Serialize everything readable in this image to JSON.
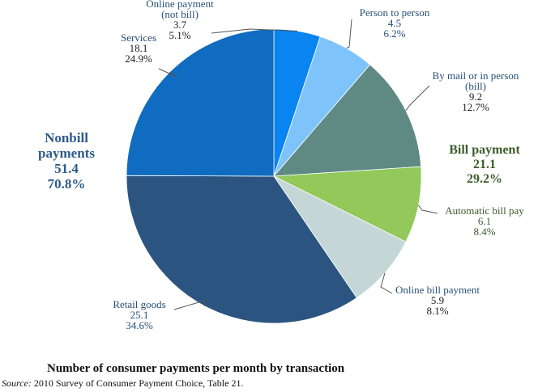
{
  "chart_data": {
    "type": "pie",
    "title": "Number of consumer payments per month by transaction",
    "slices": [
      {
        "name": "Online payment (not bill)",
        "label_lines": [
          "Online payment",
          "(not bill)"
        ],
        "value": 3.7,
        "percent": "5.1%",
        "color": "#0a84f0"
      },
      {
        "name": "Person to person",
        "label_lines": [
          "Person to person"
        ],
        "value": 4.5,
        "percent": "6.2%",
        "color": "#7ec4fb"
      },
      {
        "name": "By mail or in person (bill)",
        "label_lines": [
          "By mail or in person",
          "(bill)"
        ],
        "value": 9.2,
        "percent": "12.7%",
        "color": "#5f8a84"
      },
      {
        "name": "Automatic bill pay",
        "label_lines": [
          "Automatic bill pay"
        ],
        "value": 6.1,
        "percent": "8.4%",
        "color": "#92c95a"
      },
      {
        "name": "Online bill payment",
        "label_lines": [
          "Online bill payment"
        ],
        "value": 5.9,
        "percent": "8.1%",
        "color": "#c5d6d6"
      },
      {
        "name": "Retail goods",
        "label_lines": [
          "Retail goods"
        ],
        "value": 25.1,
        "percent": "34.6%",
        "color": "#2b5580"
      },
      {
        "name": "Services",
        "label_lines": [
          "Services"
        ],
        "value": 18.1,
        "percent": "24.9%",
        "color": "#0f6cc0"
      }
    ],
    "groups": [
      {
        "name": "Nonbill payments",
        "label_lines": [
          "Nonbill",
          "payments"
        ],
        "value": "51.4",
        "percent": "70.8%",
        "color": "#2e5a8a"
      },
      {
        "name": "Bill payment",
        "label_lines": [
          "Bill payment"
        ],
        "value": "21.1",
        "percent": "29.2%",
        "color": "#3d5c2a"
      }
    ]
  },
  "caption": {
    "title": "Number of consumer payments per month by transaction",
    "source_label": "Source:",
    "source_text": " 2010 Survey of Consumer Payment Choice, Table 21."
  }
}
